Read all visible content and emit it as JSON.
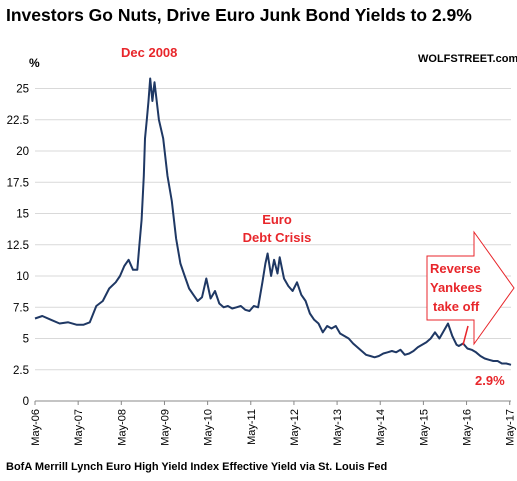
{
  "chart_data": {
    "type": "line",
    "title": "Investors Go Nuts, Drive Euro Junk Bond Yields to  2.9%",
    "brand": "WOLFSTREET.com",
    "unit_label": "%",
    "source": "BofA Merrill Lynch Euro High Yield Index Effective Yield via St. Louis Fed",
    "ylim": [
      0,
      26
    ],
    "y_ticks": [
      "0",
      "2.5",
      "5",
      "7.5",
      "10",
      "12.5",
      "15",
      "17.5",
      "20",
      "22.5",
      "25"
    ],
    "y_tick_values": [
      0,
      2.5,
      5,
      7.5,
      10,
      12.5,
      15,
      17.5,
      20,
      22.5,
      25
    ],
    "x_ticks": [
      "May-06",
      "May-07",
      "May-08",
      "May-09",
      "May-10",
      "May-11",
      "May-12",
      "May-13",
      "May-14",
      "May-15",
      "May-16",
      "May-17"
    ],
    "xlim": [
      2006.33,
      2017.36
    ],
    "grid": true,
    "line_color": "#1f3864",
    "annotation_color": "#e8262b",
    "series": [
      {
        "x": [
          2006.33,
          2006.5,
          2006.7,
          2006.9,
          2007.1,
          2007.3,
          2007.45,
          2007.6,
          2007.75,
          2007.9,
          2008.05,
          2008.2,
          2008.3,
          2008.4,
          2008.5,
          2008.6,
          2008.7,
          2008.75,
          2008.8,
          2008.85,
          2008.88,
          2008.92,
          2008.96,
          2009.0,
          2009.05,
          2009.1,
          2009.2,
          2009.3,
          2009.4,
          2009.5,
          2009.6,
          2009.7,
          2009.8,
          2009.9,
          2010.0,
          2010.1,
          2010.2,
          2010.3,
          2010.4,
          2010.5,
          2010.6,
          2010.7,
          2010.8,
          2010.9,
          2011.0,
          2011.1,
          2011.2,
          2011.3,
          2011.4,
          2011.5,
          2011.6,
          2011.67,
          2011.72,
          2011.8,
          2011.87,
          2011.95,
          2012.0,
          2012.1,
          2012.2,
          2012.3,
          2012.4,
          2012.5,
          2012.6,
          2012.7,
          2012.8,
          2012.9,
          2013.0,
          2013.1,
          2013.2,
          2013.3,
          2013.4,
          2013.5,
          2013.6,
          2013.7,
          2013.8,
          2013.9,
          2014.0,
          2014.1,
          2014.2,
          2014.3,
          2014.4,
          2014.5,
          2014.6,
          2014.7,
          2014.8,
          2014.9,
          2015.0,
          2015.1,
          2015.2,
          2015.3,
          2015.4,
          2015.5,
          2015.6,
          2015.7,
          2015.8,
          2015.9,
          2016.0,
          2016.1,
          2016.15,
          2016.25,
          2016.35,
          2016.45,
          2016.55,
          2016.65,
          2016.75,
          2016.85,
          2016.95,
          2017.05,
          2017.15,
          2017.25,
          2017.36
        ],
        "y": [
          6.6,
          6.8,
          6.5,
          6.2,
          6.3,
          6.1,
          6.1,
          6.3,
          7.6,
          8.0,
          9.0,
          9.5,
          10.0,
          10.8,
          11.3,
          10.5,
          10.5,
          12.5,
          14.5,
          18.0,
          21.0,
          22.5,
          24.0,
          25.8,
          24.0,
          25.5,
          22.5,
          21.0,
          18.0,
          16.0,
          13.0,
          11.0,
          10.0,
          9.0,
          8.5,
          8.0,
          8.3,
          9.8,
          8.2,
          8.8,
          7.8,
          7.5,
          7.6,
          7.4,
          7.5,
          7.6,
          7.3,
          7.2,
          7.6,
          7.5,
          9.5,
          11.0,
          11.8,
          10.0,
          11.3,
          10.2,
          11.5,
          9.8,
          9.2,
          8.8,
          9.5,
          8.5,
          8.0,
          7.0,
          6.5,
          6.2,
          5.5,
          6.0,
          5.8,
          6.0,
          5.4,
          5.2,
          5.0,
          4.6,
          4.3,
          4.0,
          3.7,
          3.6,
          3.5,
          3.6,
          3.8,
          3.9,
          4.0,
          3.9,
          4.1,
          3.7,
          3.8,
          4.0,
          4.3,
          4.5,
          4.7,
          5.0,
          5.5,
          5.0,
          5.6,
          6.2,
          5.2,
          4.5,
          4.4,
          4.6,
          4.2,
          4.1,
          3.9,
          3.6,
          3.4,
          3.3,
          3.2,
          3.2,
          3.0,
          3.0,
          2.9
        ]
      }
    ],
    "annotations": {
      "peak": "Dec 2008",
      "crisis_line1": "Euro",
      "crisis_line2": "Debt Crisis",
      "reverse_line1": "Reverse",
      "reverse_line2": "Yankees",
      "reverse_line3": "take off",
      "last_value": "2.9%"
    }
  }
}
